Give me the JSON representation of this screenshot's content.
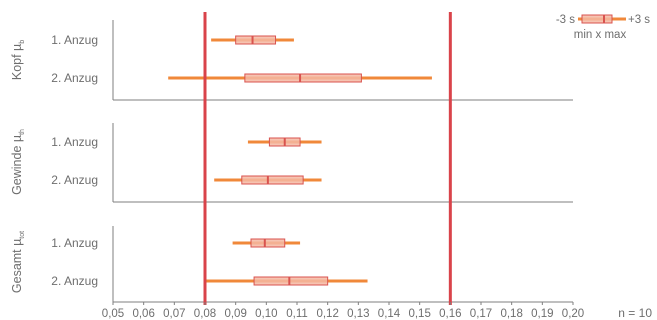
{
  "chart_data": {
    "type": "box-range",
    "x_ticks": [
      "0,05",
      "0,06",
      "0,07",
      "0,08",
      "0,09",
      "0,10",
      "0,11",
      "0,12",
      "0,13",
      "0,14",
      "0,15",
      "0,16",
      "0,17",
      "0,18",
      "0,19",
      "0,20"
    ],
    "xlim": [
      0.05,
      0.2
    ],
    "limit_lines": [
      0.08,
      0.16
    ],
    "n_label": "n = 10",
    "legend": {
      "left": "-3 s",
      "right": "+3 s",
      "caption": "min x max"
    },
    "panels": [
      {
        "label_main": "Kopf µ",
        "label_sub": "b",
        "rows": [
          {
            "name": "1. Anzug",
            "min": 0.082,
            "box_low": 0.09,
            "mean": 0.0955,
            "box_high": 0.103,
            "max": 0.109
          },
          {
            "name": "2. Anzug",
            "min": 0.068,
            "box_low": 0.093,
            "mean": 0.111,
            "box_high": 0.131,
            "max": 0.154
          }
        ]
      },
      {
        "label_main": "Gewinde µ",
        "label_sub": "th",
        "rows": [
          {
            "name": "1. Anzug",
            "min": 0.094,
            "box_low": 0.101,
            "mean": 0.106,
            "box_high": 0.111,
            "max": 0.118
          },
          {
            "name": "2. Anzug",
            "min": 0.083,
            "box_low": 0.092,
            "mean": 0.1005,
            "box_high": 0.112,
            "max": 0.118
          }
        ]
      },
      {
        "label_main": "Gesamt µ",
        "label_sub": "tot",
        "rows": [
          {
            "name": "1. Anzug",
            "min": 0.089,
            "box_low": 0.095,
            "mean": 0.0995,
            "box_high": 0.106,
            "max": 0.111
          },
          {
            "name": "2. Anzug",
            "min": 0.08,
            "box_low": 0.096,
            "mean": 0.1075,
            "box_high": 0.12,
            "max": 0.133
          }
        ]
      }
    ]
  },
  "colors": {
    "range_line": "#f0883a",
    "box_fill": "#f5b9a3",
    "box_stroke": "#d9534f",
    "mean_mark": "#d9534f",
    "limit_line": "#d9434a",
    "axis": "#7f7f7f",
    "text": "#6e6e6e"
  }
}
